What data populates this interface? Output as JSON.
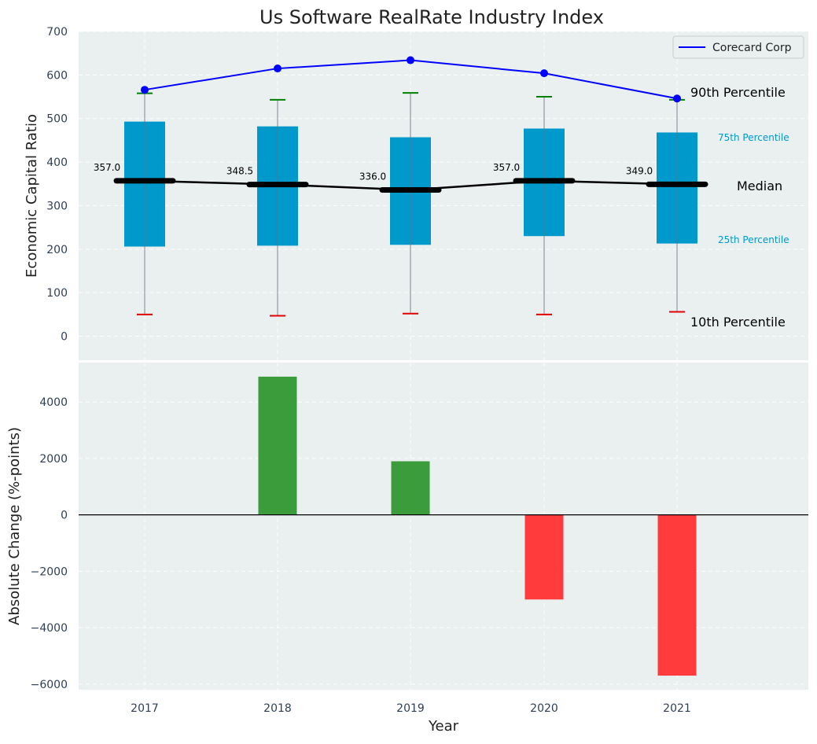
{
  "chart_data": [
    {
      "type": "box",
      "title": "Us Software RealRate Industry Index",
      "ylabel": "Economic Capital Ratio",
      "xlabel": "",
      "categories": [
        "2017",
        "2018",
        "2019",
        "2020",
        "2021"
      ],
      "ylim": [
        -55,
        700
      ],
      "yticks": [
        0,
        100,
        200,
        300,
        400,
        500,
        600,
        700
      ],
      "grid": true,
      "legend": {
        "position": "top-right",
        "entries": [
          "Corecard Corp"
        ]
      },
      "percentile_10": [
        50,
        47,
        52,
        50,
        56
      ],
      "percentile_25": [
        206,
        208,
        210,
        230,
        213
      ],
      "median": [
        357.0,
        348.5,
        336.0,
        357.0,
        349.0
      ],
      "median_labels": [
        "357.0",
        "348.5",
        "336.0",
        "357.0",
        "349.0"
      ],
      "percentile_75": [
        493,
        482,
        457,
        477,
        468
      ],
      "percentile_90": [
        558,
        543,
        559,
        550,
        543
      ],
      "series": [
        {
          "name": "Corecard Corp",
          "values": [
            566,
            615,
            634,
            604,
            546
          ]
        }
      ],
      "annotations": {
        "p90": "90th Percentile",
        "p75": "75th Percentile",
        "median": "Median",
        "p25": "25th Percentile",
        "p10": "10th Percentile"
      },
      "colors": {
        "box": "#0099cc",
        "company_line": "#0000ff",
        "median_line": "#000000",
        "p90_cap": "#008000",
        "p10_cap": "#e00000",
        "background": "#eaeff0"
      }
    },
    {
      "type": "bar",
      "title": "",
      "xlabel": "Year",
      "ylabel": "Absolute Change (%-points)",
      "categories": [
        "2017",
        "2018",
        "2019",
        "2020",
        "2021"
      ],
      "values": [
        0,
        4900,
        1900,
        -3000,
        -5700
      ],
      "ylim": [
        -6200,
        5400
      ],
      "yticks": [
        -6000,
        -4000,
        -2000,
        0,
        2000,
        4000
      ],
      "ytick_labels": [
        "−6000",
        "−4000",
        "−2000",
        "0",
        "2000",
        "4000"
      ],
      "grid": true,
      "colors": {
        "positive": "#3a9c3a",
        "negative": "#ff3b3b",
        "zero_line": "#000000"
      }
    }
  ]
}
